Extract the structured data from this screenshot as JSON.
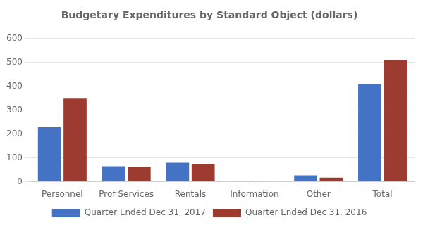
{
  "chart_data": {
    "type": "bar",
    "title": "Budgetary Expenditures by Standard Object (dollars)",
    "categories": [
      "Personnel",
      "Prof Services",
      "Rentals",
      "Information",
      "Other",
      "Total"
    ],
    "series": [
      {
        "name": "Quarter Ended Dec 31, 2017",
        "color": "#4472C4",
        "values": [
          228,
          65,
          80,
          5,
          27,
          407
        ]
      },
      {
        "name": "Quarter Ended Dec 31, 2016",
        "color": "#9E3B30",
        "values": [
          348,
          62,
          74,
          5,
          17,
          507
        ]
      }
    ],
    "ylim": [
      0,
      640
    ],
    "yticks": [
      0,
      100,
      200,
      300,
      400,
      500,
      600
    ],
    "grid": true,
    "legend": "bottom"
  }
}
